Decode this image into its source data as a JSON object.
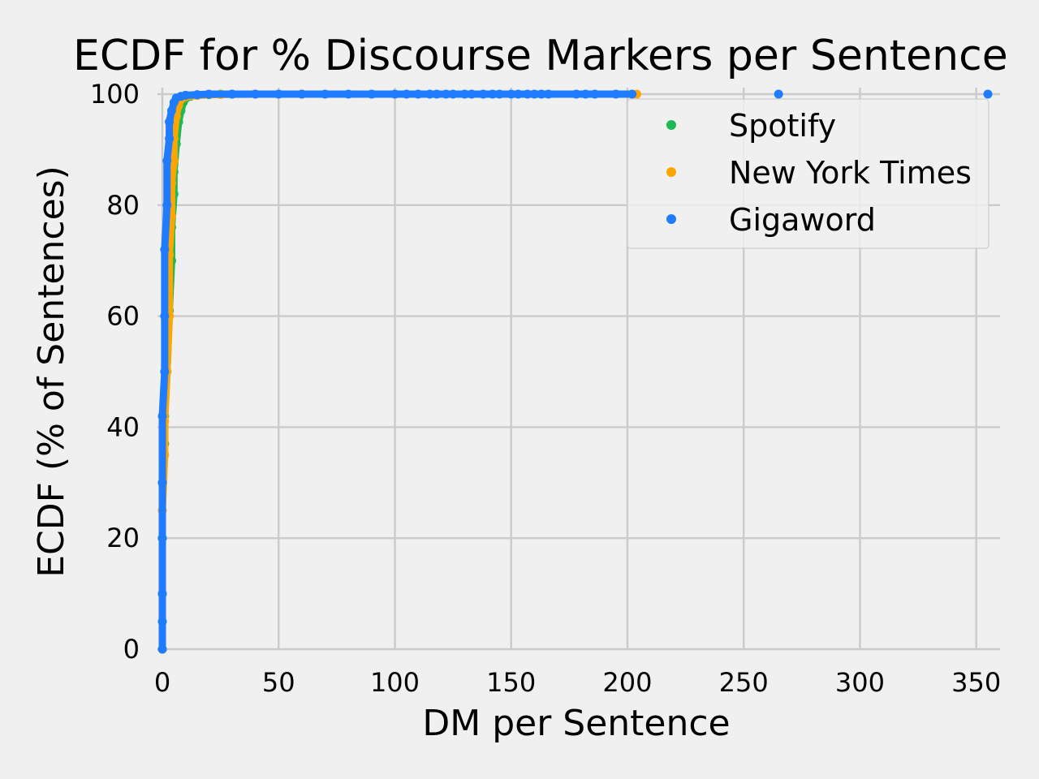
{
  "chart_data": {
    "type": "scatter",
    "title": "ECDF for % Discourse Markers per Sentence",
    "xlabel": "DM per Sentence",
    "ylabel": "ECDF (% of Sentences)",
    "xlim": [
      0,
      360
    ],
    "ylim": [
      0,
      100
    ],
    "xticks": [
      "0",
      "50",
      "100",
      "150",
      "200",
      "250",
      "300",
      "350"
    ],
    "yticks": [
      "0",
      "20",
      "40",
      "60",
      "80",
      "100"
    ],
    "grid": true,
    "legend_position": "top-right",
    "series": [
      {
        "name": "Spotify",
        "color": "#1db954",
        "points": [
          [
            0,
            0
          ],
          [
            0,
            5
          ],
          [
            0,
            10
          ],
          [
            0,
            20
          ],
          [
            0,
            30
          ],
          [
            1,
            37
          ],
          [
            1,
            42
          ],
          [
            2,
            50
          ],
          [
            3,
            61
          ],
          [
            4,
            70
          ],
          [
            4,
            76
          ],
          [
            5,
            82
          ],
          [
            5,
            86
          ],
          [
            6,
            91
          ],
          [
            7,
            95
          ],
          [
            8,
            97
          ],
          [
            9,
            98.5
          ],
          [
            10,
            99.2
          ],
          [
            12,
            99.6
          ],
          [
            15,
            99.8
          ],
          [
            20,
            99.9
          ],
          [
            25,
            100
          ],
          [
            30,
            100
          ]
        ]
      },
      {
        "name": "New York Times",
        "color": "#ffa500",
        "points": [
          [
            0,
            0
          ],
          [
            0,
            10
          ],
          [
            0,
            25
          ],
          [
            1,
            35
          ],
          [
            1,
            41
          ],
          [
            2,
            50
          ],
          [
            3,
            60
          ],
          [
            3,
            71
          ],
          [
            4,
            78
          ],
          [
            4,
            84
          ],
          [
            5,
            88
          ],
          [
            5,
            92
          ],
          [
            6,
            96
          ],
          [
            7,
            98
          ],
          [
            8,
            99
          ],
          [
            10,
            99.5
          ],
          [
            15,
            99.8
          ],
          [
            25,
            99.95
          ],
          [
            40,
            100
          ],
          [
            60,
            100
          ],
          [
            204,
            100
          ]
        ]
      },
      {
        "name": "Gigaword",
        "color": "#1f7bff",
        "points": [
          [
            0,
            0
          ],
          [
            0,
            5
          ],
          [
            0,
            10
          ],
          [
            0,
            20
          ],
          [
            0,
            30
          ],
          [
            0,
            42
          ],
          [
            1,
            50
          ],
          [
            1,
            60
          ],
          [
            1,
            72
          ],
          [
            2,
            80
          ],
          [
            2,
            88
          ],
          [
            3,
            92
          ],
          [
            3,
            95
          ],
          [
            4,
            97
          ],
          [
            5,
            98.5
          ],
          [
            6,
            99.3
          ],
          [
            8,
            99.6
          ],
          [
            10,
            99.8
          ],
          [
            15,
            99.9
          ],
          [
            20,
            100
          ],
          [
            30,
            100
          ],
          [
            40,
            100
          ],
          [
            50,
            100
          ],
          [
            60,
            100
          ],
          [
            70,
            100
          ],
          [
            80,
            100
          ],
          [
            90,
            100
          ],
          [
            100,
            100
          ],
          [
            105,
            100
          ],
          [
            110,
            100
          ],
          [
            115,
            100
          ],
          [
            118,
            100
          ],
          [
            122,
            100
          ],
          [
            125,
            100
          ],
          [
            130,
            100
          ],
          [
            133,
            100
          ],
          [
            138,
            100
          ],
          [
            142,
            100
          ],
          [
            145,
            100
          ],
          [
            150,
            100
          ],
          [
            153,
            100
          ],
          [
            157,
            100
          ],
          [
            160,
            100
          ],
          [
            163,
            100
          ],
          [
            166,
            100
          ],
          [
            178,
            100
          ],
          [
            182,
            100
          ],
          [
            186,
            100
          ],
          [
            195,
            100
          ],
          [
            202,
            100
          ],
          [
            265,
            100
          ],
          [
            355,
            100
          ]
        ]
      }
    ]
  }
}
